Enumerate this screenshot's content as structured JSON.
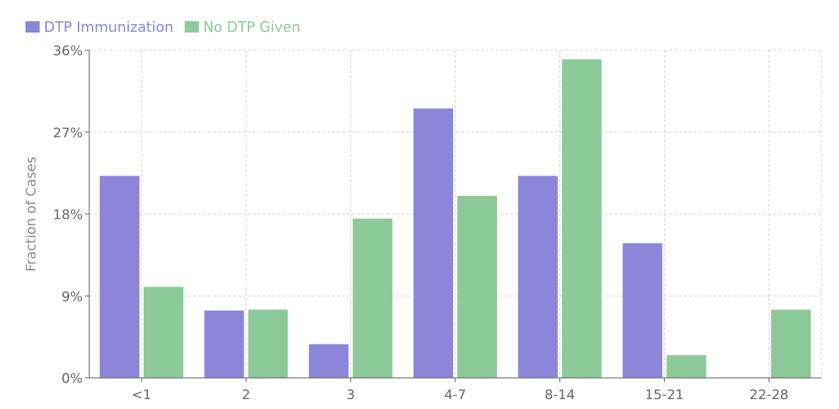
{
  "chart_data": {
    "type": "bar",
    "categories": [
      "<1",
      "2",
      "3",
      "4-7",
      "8-14",
      "15-21",
      "22-28"
    ],
    "series": [
      {
        "name": "DTP Immunization",
        "color": "#8b86d9",
        "values": [
          22.2,
          7.4,
          3.7,
          29.6,
          22.2,
          14.8,
          0
        ]
      },
      {
        "name": "No DTP Given",
        "color": "#8dca99",
        "values": [
          10,
          7.5,
          17.5,
          20,
          35,
          2.5,
          7.5
        ]
      }
    ],
    "ylabel": "Fraction of Cases",
    "xlabel": "",
    "ylim": [
      0,
      36
    ],
    "yticks": [
      0,
      9,
      18,
      27,
      36
    ],
    "ytick_labels": [
      "0%",
      "9%",
      "18%",
      "27%",
      "36%"
    ],
    "grid": true,
    "legend": "top-left"
  }
}
